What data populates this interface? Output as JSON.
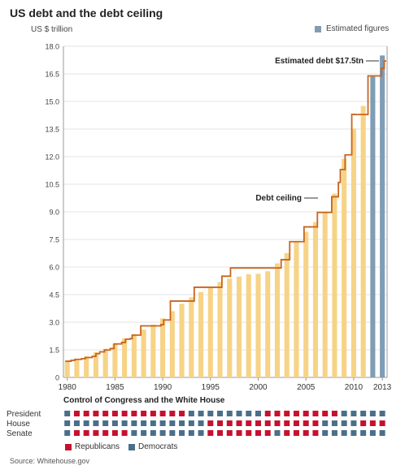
{
  "title": "US debt and the debt ceiling",
  "units_label": "US $ trillion",
  "legend_estimated": "Estimated figures",
  "annotations": {
    "estimated_debt": "Estimated debt $17.5tn",
    "debt_ceiling": "Debt ceiling"
  },
  "control": {
    "title": "Control of Congress and the White House",
    "rows": [
      "President",
      "House",
      "Senate"
    ],
    "legend": {
      "republicans": "Republicans",
      "democrats": "Democrats"
    },
    "president": [
      "D",
      "R",
      "R",
      "R",
      "R",
      "R",
      "R",
      "R",
      "R",
      "R",
      "R",
      "R",
      "R",
      "D",
      "D",
      "D",
      "D",
      "D",
      "D",
      "D",
      "D",
      "R",
      "R",
      "R",
      "R",
      "R",
      "R",
      "R",
      "R",
      "D",
      "D",
      "D",
      "D",
      "D"
    ],
    "house": [
      "D",
      "D",
      "D",
      "D",
      "D",
      "D",
      "D",
      "D",
      "D",
      "D",
      "D",
      "D",
      "D",
      "D",
      "D",
      "R",
      "R",
      "R",
      "R",
      "R",
      "R",
      "R",
      "R",
      "R",
      "R",
      "R",
      "R",
      "D",
      "D",
      "D",
      "D",
      "R",
      "R",
      "R"
    ],
    "senate": [
      "D",
      "R",
      "R",
      "R",
      "R",
      "R",
      "R",
      "D",
      "D",
      "D",
      "D",
      "D",
      "D",
      "D",
      "D",
      "R",
      "R",
      "R",
      "R",
      "R",
      "R",
      "R",
      "D",
      "R",
      "R",
      "R",
      "R",
      "D",
      "D",
      "D",
      "D",
      "D",
      "D",
      "D"
    ]
  },
  "colors": {
    "debt_bar": "#f6d386",
    "estimated_bar": "#7f9db5",
    "ceiling_line": "#c8641d",
    "republican": "#c8102e",
    "democrat": "#4a6f8a",
    "grid": "#e3e3e3"
  },
  "source": "Source: Whitehouse.gov",
  "chart_data": {
    "type": "bar",
    "title": "US debt and the debt ceiling",
    "ylabel": "US $ trillion",
    "ylim": [
      0,
      18
    ],
    "yticks": [
      "0",
      "1.5",
      "3.0",
      "4.5",
      "6.0",
      "7.5",
      "9.0",
      "10.5",
      "12.0",
      "13.5",
      "15.0",
      "16.5",
      "18.0"
    ],
    "xticks": [
      "1980",
      "1985",
      "1990",
      "1995",
      "2000",
      "2005",
      "2010",
      "2013"
    ],
    "categories": [
      "1980",
      "1981",
      "1982",
      "1983",
      "1984",
      "1985",
      "1986",
      "1987",
      "1988",
      "1989",
      "1990",
      "1991",
      "1992",
      "1993",
      "1994",
      "1995",
      "1996",
      "1997",
      "1998",
      "1999",
      "2000",
      "2001",
      "2002",
      "2003",
      "2004",
      "2005",
      "2006",
      "2007",
      "2008",
      "2009",
      "2010",
      "2011",
      "2012",
      "2013"
    ],
    "series": [
      {
        "name": "",
        "values": [
          0.9,
          0.99,
          1.14,
          1.37,
          1.56,
          1.82,
          2.12,
          2.35,
          2.6,
          2.87,
          3.21,
          3.6,
          4.0,
          4.35,
          4.64,
          4.92,
          5.18,
          5.37,
          5.48,
          5.61,
          5.63,
          5.77,
          6.2,
          6.76,
          7.35,
          7.91,
          8.45,
          8.95,
          9.99,
          11.88,
          13.53,
          14.76,
          16.35,
          17.5
        ]
      }
    ],
    "estimated_categories": [
      "2012",
      "2013"
    ],
    "debt_ceiling": [
      [
        1979.8,
        0.88
      ],
      [
        1980.4,
        0.93
      ],
      [
        1980.8,
        0.98
      ],
      [
        1981.5,
        1.02
      ],
      [
        1981.9,
        1.08
      ],
      [
        1982.6,
        1.14
      ],
      [
        1983.0,
        1.29
      ],
      [
        1983.4,
        1.39
      ],
      [
        1983.9,
        1.49
      ],
      [
        1984.5,
        1.57
      ],
      [
        1984.9,
        1.82
      ],
      [
        1985.7,
        1.9
      ],
      [
        1986.1,
        2.08
      ],
      [
        1986.6,
        2.11
      ],
      [
        1986.8,
        2.3
      ],
      [
        1987.7,
        2.8
      ],
      [
        1989.8,
        2.87
      ],
      [
        1990.1,
        3.12
      ],
      [
        1990.8,
        4.15
      ],
      [
        1993.3,
        4.9
      ],
      [
        1996.2,
        5.5
      ],
      [
        1997.1,
        5.95
      ],
      [
        2002.4,
        6.4
      ],
      [
        2003.3,
        7.38
      ],
      [
        2004.8,
        8.18
      ],
      [
        2006.2,
        8.97
      ],
      [
        2007.7,
        9.82
      ],
      [
        2008.4,
        10.6
      ],
      [
        2008.6,
        11.3
      ],
      [
        2009.1,
        12.1
      ],
      [
        2009.8,
        14.3
      ],
      [
        2010.1,
        14.29
      ],
      [
        2011.5,
        16.39
      ],
      [
        2012.3,
        16.39
      ],
      [
        2012.9,
        16.8
      ],
      [
        2013.2,
        17.2
      ]
    ]
  }
}
